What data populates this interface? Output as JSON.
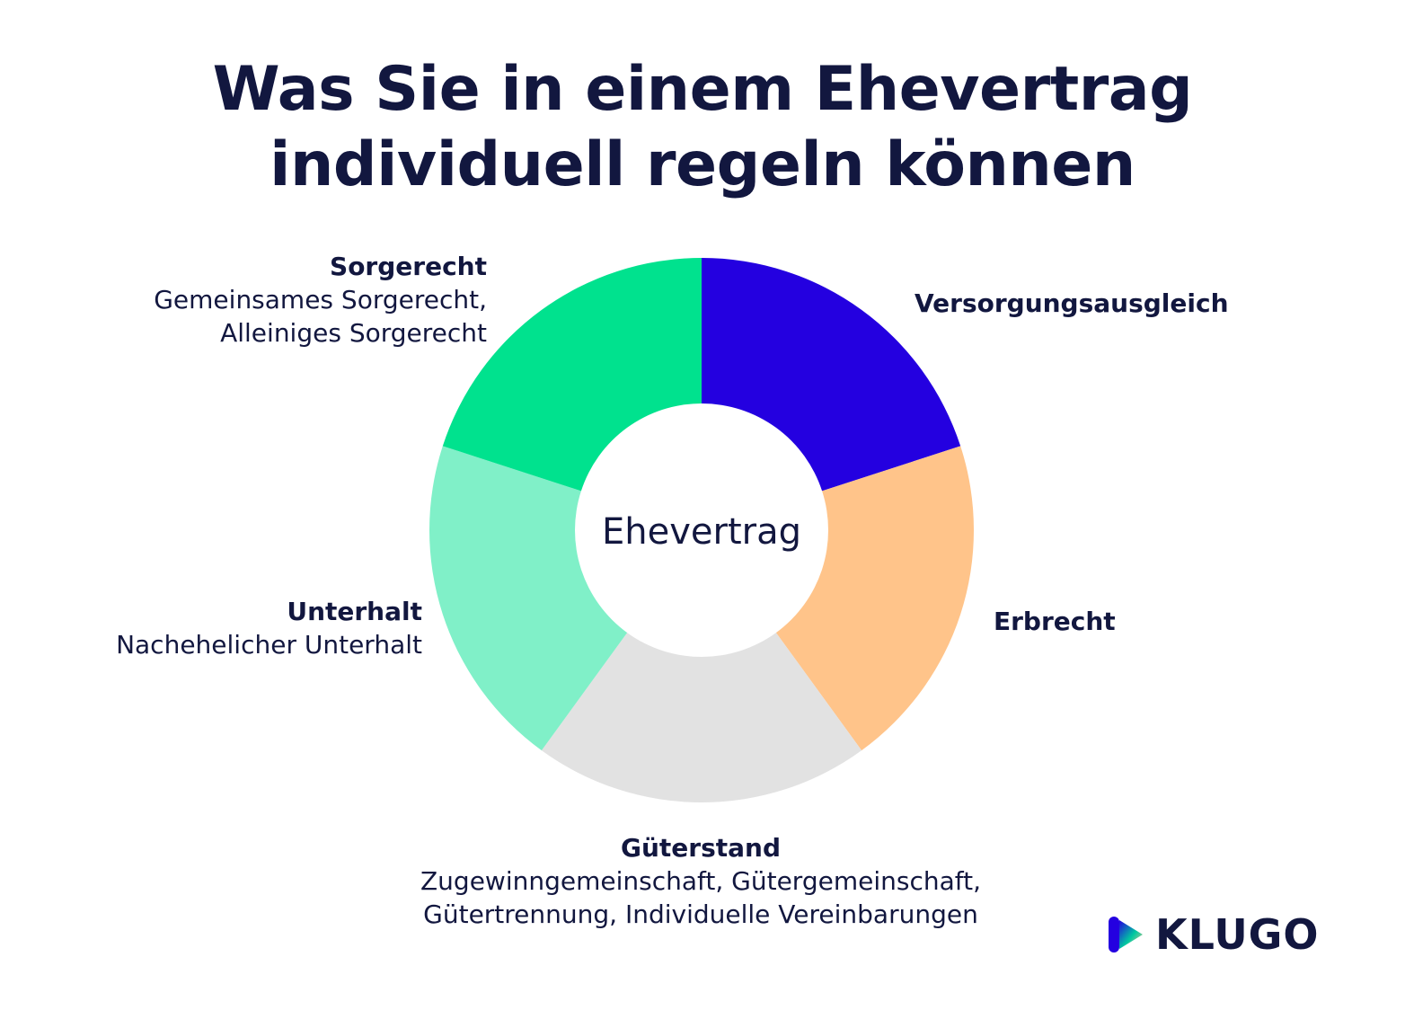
{
  "title": {
    "line1": "Was Sie in einem Ehevertrag",
    "line2": "individuell regeln können"
  },
  "chart_data": {
    "type": "pie",
    "variant": "donut",
    "center_label": "Ehevertrag",
    "slices": [
      {
        "label": "Versorgungsausgleich",
        "detail": "",
        "value": 20,
        "color": "#2400e0"
      },
      {
        "label": "Erbrecht",
        "detail": "",
        "value": 20,
        "color": "#ffc48a"
      },
      {
        "label": "Güterstand",
        "detail": "Zugewinngemeinschaft, Gütergemeinschaft, Gütertrennung, Individuelle Vereinbarungen",
        "value": 20,
        "color": "#e2e2e2"
      },
      {
        "label": "Unterhalt",
        "detail": "Nachehelicher Unterhalt",
        "value": 20,
        "color": "#80f0c8"
      },
      {
        "label": "Sorgerecht",
        "detail": "Gemeinsames Sorgerecht, Alleiniges Sorgerecht",
        "value": 20,
        "color": "#00e28e"
      }
    ]
  },
  "labels": {
    "sorgerecht": {
      "head": "Sorgerecht",
      "line1": "Gemeinsames Sorgerecht,",
      "line2": "Alleiniges Sorgerecht"
    },
    "versorgung": {
      "head": "Versorgungsausgleich"
    },
    "erbrecht": {
      "head": "Erbrecht"
    },
    "unterhalt": {
      "head": "Unterhalt",
      "line1": "Nachehelicher Unterhalt"
    },
    "gueterstand": {
      "head": "Güterstand",
      "line1": "Zugewinngemeinschaft, Gütergemeinschaft,",
      "line2": "Gütertrennung, Individuelle Vereinbarungen"
    }
  },
  "logo": {
    "text": "KLUGO",
    "colors": [
      "#2400e0",
      "#00e28e",
      "#ffc48a"
    ]
  }
}
